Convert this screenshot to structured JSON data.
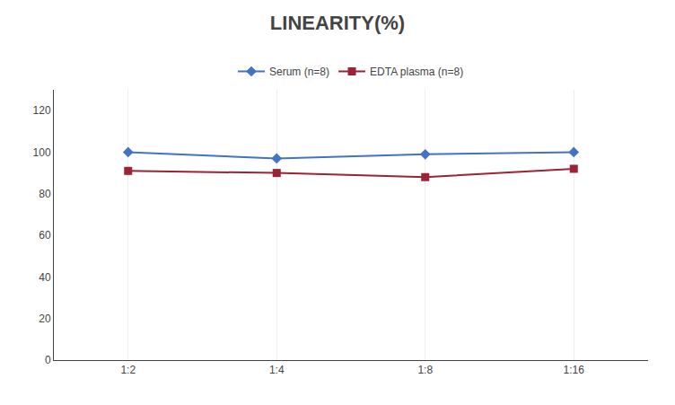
{
  "chart_data": {
    "type": "line",
    "title": "LINEARITY(%)",
    "categories": [
      "1:2",
      "1:4",
      "1:8",
      "1:16"
    ],
    "series": [
      {
        "name": "Serum (n=8)",
        "color": "#4472c4",
        "marker": "diamond",
        "line_style": "solid",
        "values": [
          100,
          97,
          99,
          100
        ]
      },
      {
        "name": "EDTA plasma (n=8)",
        "color": "#9b2335",
        "marker": "square",
        "line_style": "solid",
        "values": [
          91,
          90,
          88,
          92
        ]
      }
    ],
    "ylim": [
      0,
      130
    ],
    "yticks": [
      0,
      20,
      40,
      60,
      80,
      100,
      120
    ],
    "grid": "x",
    "legend": "top"
  }
}
